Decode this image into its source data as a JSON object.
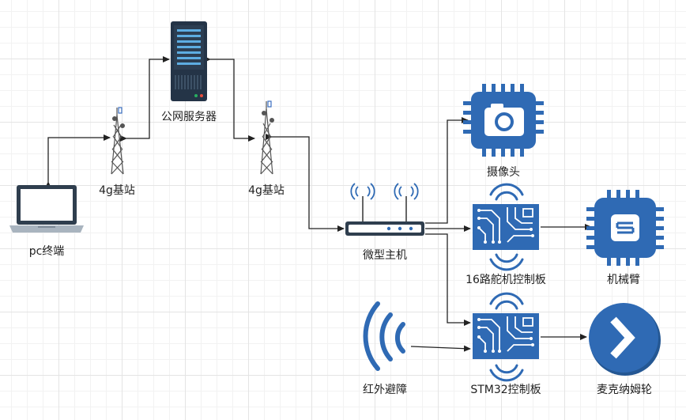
{
  "nodes": {
    "server": {
      "label": "公网服务器",
      "icon": "server-icon"
    },
    "tower_left": {
      "label": "4g基站",
      "icon": "cell-tower-icon"
    },
    "tower_right": {
      "label": "4g基站",
      "icon": "cell-tower-icon"
    },
    "pc": {
      "label": "pc终端",
      "icon": "laptop-icon"
    },
    "router": {
      "label": "微型主机",
      "icon": "router-icon"
    },
    "camera": {
      "label": "摄像头",
      "icon": "camera-chip-icon"
    },
    "servo_board": {
      "label": "16路舵机控制板",
      "icon": "circuit-board-icon"
    },
    "arm": {
      "label": "机械臂",
      "icon": "chip-icon"
    },
    "infrared": {
      "label": "红外避障",
      "icon": "signal-wave-icon"
    },
    "stm32_board": {
      "label": "STM32控制板",
      "icon": "circuit-board-icon"
    },
    "wheel": {
      "label": "麦克纳姆轮",
      "icon": "chevron-right-circle-icon"
    }
  },
  "colors": {
    "icon_blue": "#2f6ab4",
    "edge": "#222222",
    "grid": "#e4e4e4"
  }
}
